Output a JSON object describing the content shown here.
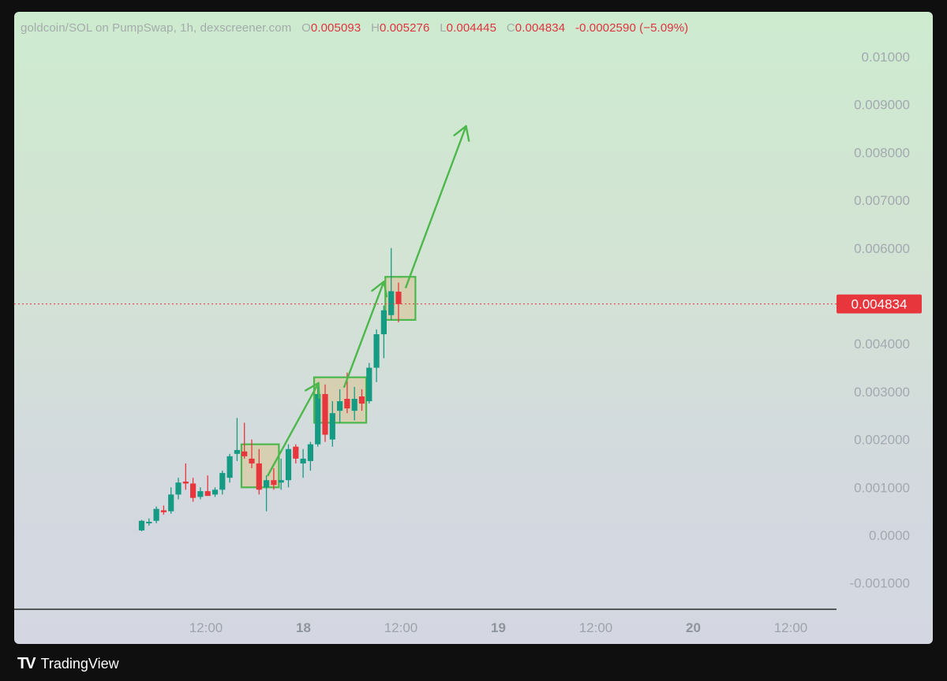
{
  "legend": {
    "symbol": "goldcoin/SOL on PumpSwap, 1h, dexscreener.com",
    "o_label": "O",
    "o_value": "0.005093",
    "h_label": "H",
    "h_value": "0.005276",
    "l_label": "L",
    "l_value": "0.004445",
    "c_label": "C",
    "c_value": "0.004834",
    "change": "-0.0002590 (−5.09%)"
  },
  "price_tag": "0.004834",
  "brand": {
    "logo": "TV",
    "name": "TradingView"
  },
  "colors": {
    "up": "#159a83",
    "down": "#e8363d",
    "box_fill": "#d6ccaa",
    "box_stroke": "#4cb84c",
    "arrow": "#4cb84c",
    "price_line": "#e8363d"
  },
  "chart_data": {
    "type": "candlestick",
    "ylim": [
      -0.0012,
      0.0108
    ],
    "y_ticks": [
      "0.01000",
      "0.009000",
      "0.008000",
      "0.007000",
      "0.006000",
      "0.004000",
      "0.003000",
      "0.002000",
      "0.001000",
      "0.0000",
      "-0.001000"
    ],
    "x_ticks": [
      {
        "label": "12:00",
        "bold": false
      },
      {
        "label": "18",
        "bold": true
      },
      {
        "label": "12:00",
        "bold": false
      },
      {
        "label": "19",
        "bold": true
      },
      {
        "label": "12:00",
        "bold": false
      },
      {
        "label": "20",
        "bold": true
      },
      {
        "label": "12:00",
        "bold": false
      }
    ],
    "last_price": 0.004834,
    "candles": [
      {
        "o": 0.0001,
        "h": 0.00032,
        "l": 8e-05,
        "c": 0.0003
      },
      {
        "o": 0.00025,
        "h": 0.00035,
        "l": 0.0002,
        "c": 0.00028
      },
      {
        "o": 0.0003,
        "h": 0.0006,
        "l": 0.00025,
        "c": 0.00055
      },
      {
        "o": 0.00052,
        "h": 0.00062,
        "l": 0.00043,
        "c": 0.00048
      },
      {
        "o": 0.0005,
        "h": 0.001,
        "l": 0.00045,
        "c": 0.00085
      },
      {
        "o": 0.00085,
        "h": 0.0012,
        "l": 0.00075,
        "c": 0.0011
      },
      {
        "o": 0.00112,
        "h": 0.0015,
        "l": 0.00095,
        "c": 0.00108
      },
      {
        "o": 0.00108,
        "h": 0.0012,
        "l": 0.0007,
        "c": 0.00078
      },
      {
        "o": 0.0008,
        "h": 0.001,
        "l": 0.00075,
        "c": 0.00092
      },
      {
        "o": 0.00092,
        "h": 0.00125,
        "l": 0.00085,
        "c": 0.00082
      },
      {
        "o": 0.00085,
        "h": 0.001,
        "l": 0.0008,
        "c": 0.00095
      },
      {
        "o": 0.00095,
        "h": 0.00135,
        "l": 0.00085,
        "c": 0.0013
      },
      {
        "o": 0.0012,
        "h": 0.0017,
        "l": 0.0011,
        "c": 0.00165
      },
      {
        "o": 0.0017,
        "h": 0.00245,
        "l": 0.00155,
        "c": 0.00178
      },
      {
        "o": 0.00175,
        "h": 0.00235,
        "l": 0.0016,
        "c": 0.00165
      },
      {
        "o": 0.0016,
        "h": 0.002,
        "l": 0.0014,
        "c": 0.0015
      },
      {
        "o": 0.0015,
        "h": 0.0018,
        "l": 0.00085,
        "c": 0.00095
      },
      {
        "o": 0.001,
        "h": 0.00125,
        "l": 0.0005,
        "c": 0.00115
      },
      {
        "o": 0.00115,
        "h": 0.0014,
        "l": 0.00095,
        "c": 0.00105
      },
      {
        "o": 0.0011,
        "h": 0.0016,
        "l": 0.00095,
        "c": 0.00115
      },
      {
        "o": 0.00115,
        "h": 0.0019,
        "l": 0.001,
        "c": 0.0018
      },
      {
        "o": 0.00185,
        "h": 0.0019,
        "l": 0.0015,
        "c": 0.0016
      },
      {
        "o": 0.0015,
        "h": 0.0018,
        "l": 0.0012,
        "c": 0.0016
      },
      {
        "o": 0.00155,
        "h": 0.00195,
        "l": 0.00135,
        "c": 0.0019
      },
      {
        "o": 0.0019,
        "h": 0.0031,
        "l": 0.00185,
        "c": 0.00295
      },
      {
        "o": 0.00295,
        "h": 0.00315,
        "l": 0.00195,
        "c": 0.0021
      },
      {
        "o": 0.002,
        "h": 0.0028,
        "l": 0.00185,
        "c": 0.00255
      },
      {
        "o": 0.0026,
        "h": 0.00305,
        "l": 0.00235,
        "c": 0.0028
      },
      {
        "o": 0.00285,
        "h": 0.0034,
        "l": 0.00255,
        "c": 0.00265
      },
      {
        "o": 0.0026,
        "h": 0.0031,
        "l": 0.0024,
        "c": 0.00285
      },
      {
        "o": 0.0029,
        "h": 0.00305,
        "l": 0.0026,
        "c": 0.00275
      },
      {
        "o": 0.0028,
        "h": 0.0036,
        "l": 0.00275,
        "c": 0.0035
      },
      {
        "o": 0.0035,
        "h": 0.0043,
        "l": 0.0032,
        "c": 0.0042
      },
      {
        "o": 0.0042,
        "h": 0.0048,
        "l": 0.0037,
        "c": 0.0047
      },
      {
        "o": 0.0046,
        "h": 0.006,
        "l": 0.0045,
        "c": 0.0051
      },
      {
        "o": 0.00509,
        "h": 0.00528,
        "l": 0.00445,
        "c": 0.00483
      }
    ],
    "boxes": [
      {
        "i0": 13.6,
        "i1": 18.7,
        "y0": 0.0019,
        "y1": 0.001
      },
      {
        "i0": 23.5,
        "i1": 30.6,
        "y0": 0.0033,
        "y1": 0.00235
      },
      {
        "i0": 33.2,
        "i1": 37.3,
        "y0": 0.0054,
        "y1": 0.0045
      }
    ],
    "arrows": [
      {
        "i0": 17.2,
        "y0": 0.00125,
        "i1": 24.1,
        "y1": 0.00318
      },
      {
        "i0": 27.6,
        "y0": 0.0031,
        "i1": 33.0,
        "y1": 0.0053
      },
      {
        "i0": 36.0,
        "y0": 0.00518,
        "i1": 44.2,
        "y1": 0.00855
      }
    ]
  }
}
